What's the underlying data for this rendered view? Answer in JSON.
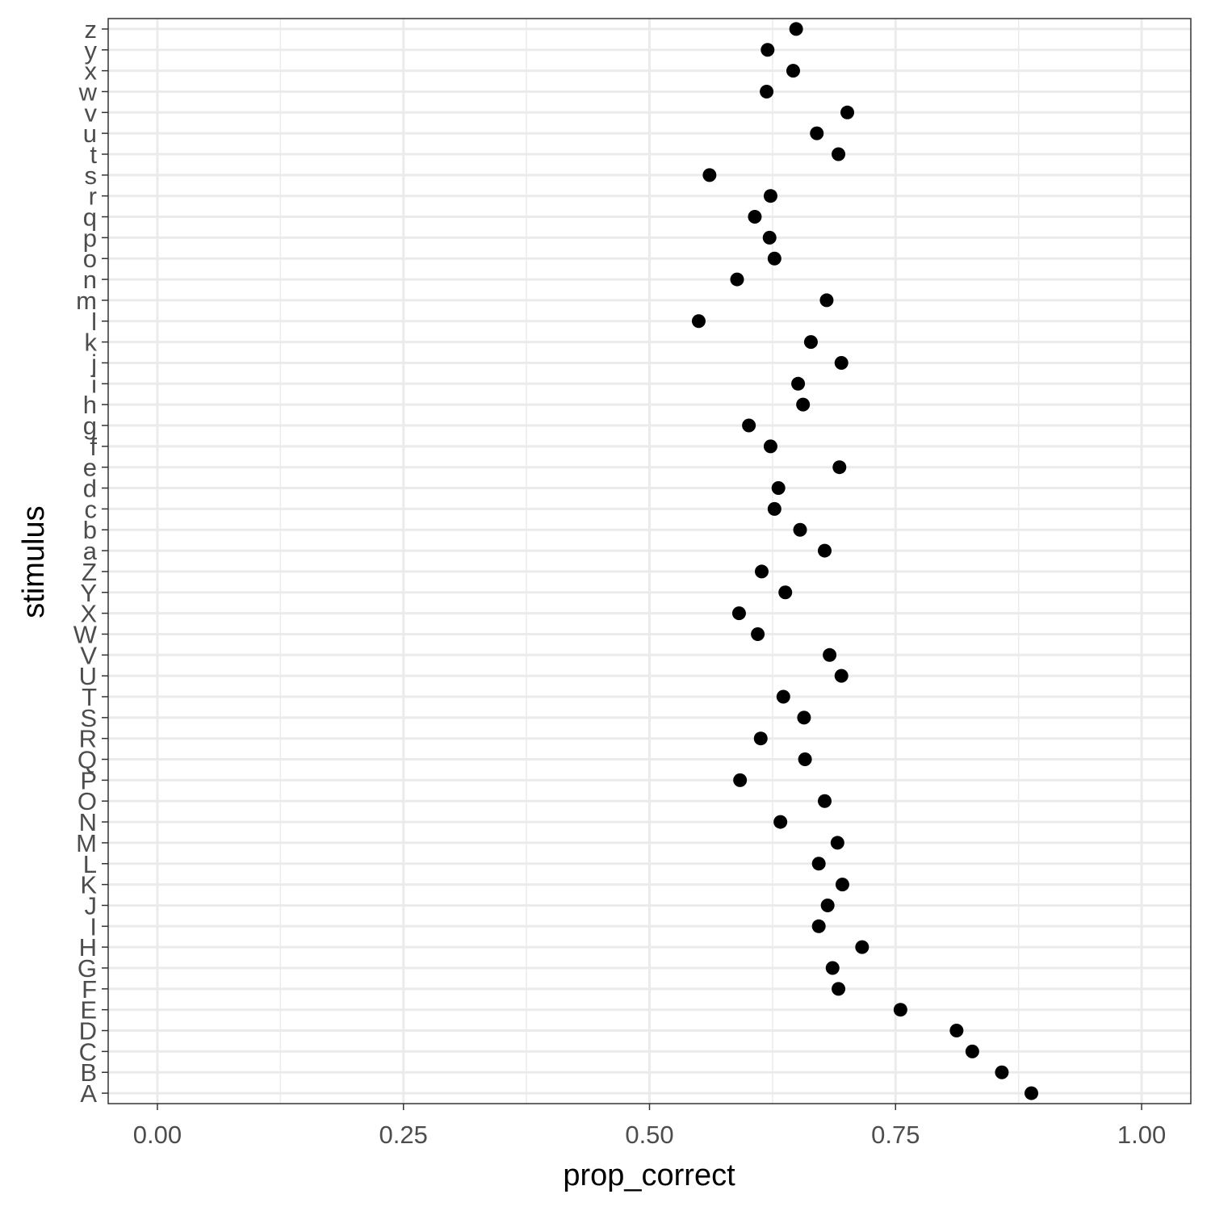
{
  "chart_data": {
    "type": "scatter",
    "xlabel": "prop_correct",
    "ylabel": "stimulus",
    "xlim": [
      -0.05,
      1.05
    ],
    "x_ticks": [
      0,
      0.25,
      0.5,
      0.75,
      1
    ],
    "x_tick_labels": [
      "0.00",
      "0.25",
      "0.50",
      "0.75",
      "1.00"
    ],
    "grid": true,
    "categories": [
      "A",
      "B",
      "C",
      "D",
      "E",
      "F",
      "G",
      "H",
      "I",
      "J",
      "K",
      "L",
      "M",
      "N",
      "O",
      "P",
      "Q",
      "R",
      "S",
      "T",
      "U",
      "V",
      "W",
      "X",
      "Y",
      "Z",
      "a",
      "b",
      "c",
      "d",
      "e",
      "f",
      "g",
      "h",
      "i",
      "j",
      "k",
      "l",
      "m",
      "n",
      "o",
      "p",
      "q",
      "r",
      "s",
      "t",
      "u",
      "v",
      "w",
      "x",
      "y",
      "z"
    ],
    "values": [
      0.888,
      0.858,
      0.828,
      0.812,
      0.755,
      0.692,
      0.686,
      0.716,
      0.672,
      0.681,
      0.696,
      0.672,
      0.691,
      0.633,
      0.678,
      0.592,
      0.658,
      0.613,
      0.657,
      0.636,
      0.695,
      0.683,
      0.61,
      0.591,
      0.638,
      0.614,
      0.678,
      0.653,
      0.627,
      0.631,
      0.693,
      0.623,
      0.601,
      0.656,
      0.651,
      0.695,
      0.664,
      0.55,
      0.68,
      0.589,
      0.627,
      0.622,
      0.607,
      0.623,
      0.561,
      0.692,
      0.67,
      0.701,
      0.619,
      0.646,
      0.62,
      0.649
    ],
    "point_color": "#000000",
    "panel_border_color": "#333333",
    "grid_major_color": "#ebebeb"
  }
}
